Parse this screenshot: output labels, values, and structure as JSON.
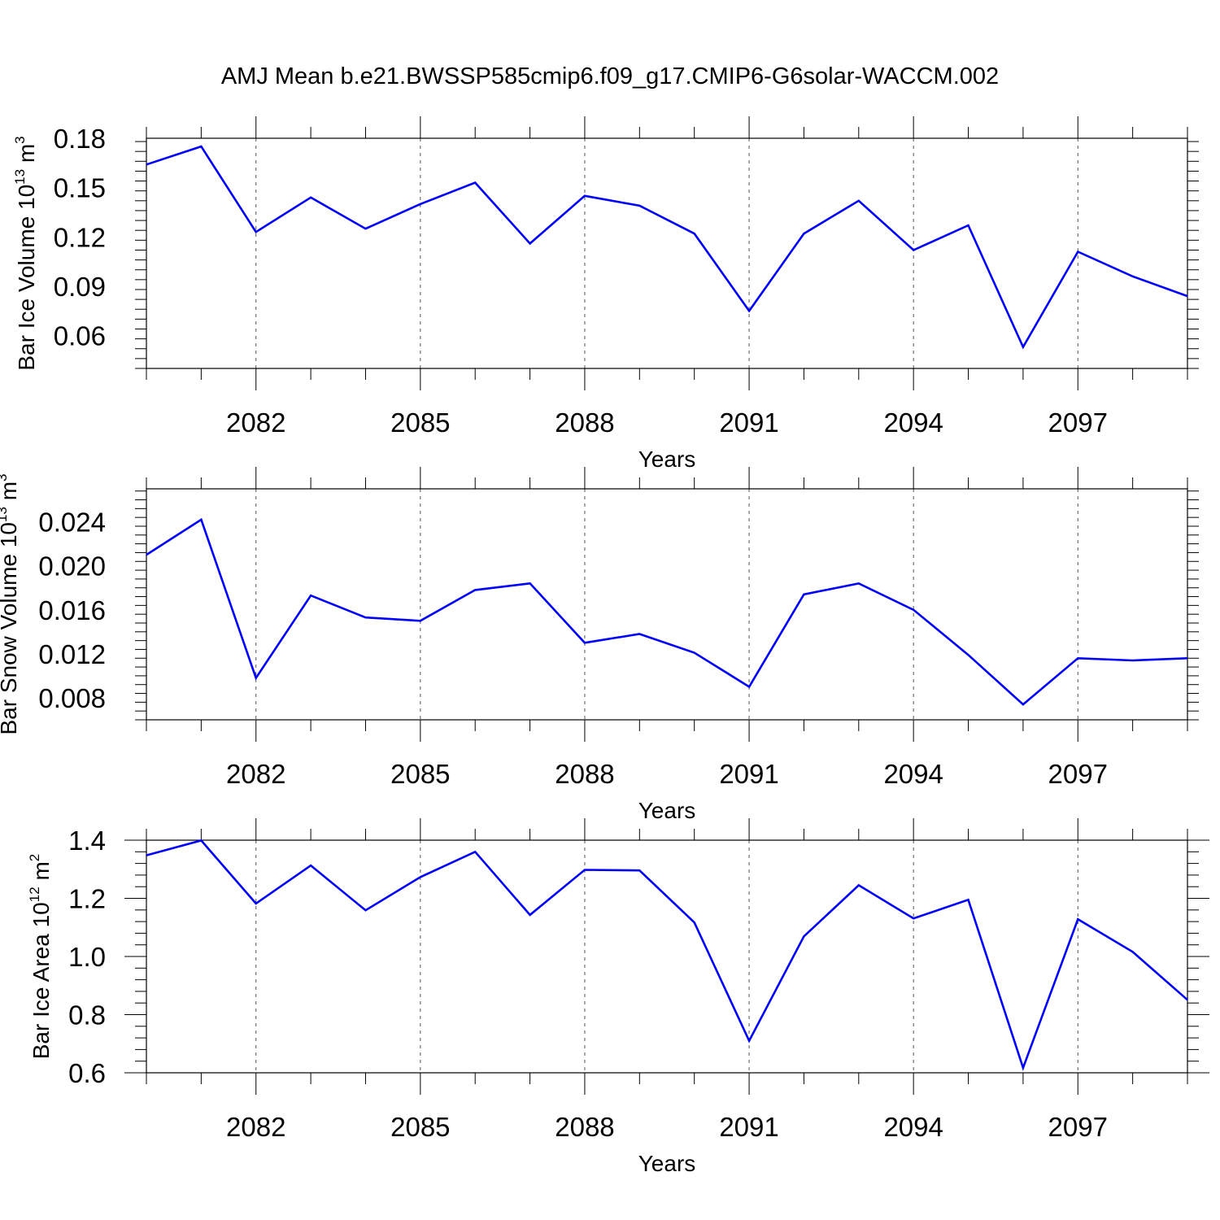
{
  "title": "AMJ Mean b.e21.BWSSP585cmip6.f09_g17.CMIP6-G6solar-WACCM.002",
  "line_color": "#0000ff",
  "chart_data": [
    {
      "type": "line",
      "name": "ice-volume",
      "ylabel_main": "Bar Ice Volume 10",
      "ylabel_exp": "13",
      "ylabel_unit": " m",
      "ylabel_unit_exp": "3",
      "xlabel": "Years",
      "xlim": [
        2080,
        2099
      ],
      "ylim": [
        0.04,
        0.18
      ],
      "x_ticks": [
        2082,
        2085,
        2088,
        2091,
        2094,
        2097
      ],
      "x_tick_labels": [
        "2082",
        "2085",
        "2088",
        "2091",
        "2094",
        "2097"
      ],
      "y_ticks": [
        0.06,
        0.09,
        0.12,
        0.15,
        0.18
      ],
      "y_tick_labels": [
        "0.06",
        "0.09",
        "0.12",
        "0.15",
        "0.18"
      ],
      "x": [
        2080,
        2081,
        2082,
        2083,
        2084,
        2085,
        2086,
        2087,
        2088,
        2089,
        2090,
        2091,
        2092,
        2093,
        2094,
        2095,
        2096,
        2097,
        2098,
        2099
      ],
      "values": [
        0.164,
        0.175,
        0.123,
        0.144,
        0.125,
        0.14,
        0.153,
        0.116,
        0.145,
        0.139,
        0.122,
        0.075,
        0.122,
        0.142,
        0.112,
        0.127,
        0.053,
        0.111,
        0.096,
        0.084
      ]
    },
    {
      "type": "line",
      "name": "snow-volume",
      "ylabel_main": "Bar Snow Volume 10",
      "ylabel_exp": "13",
      "ylabel_unit": " m",
      "ylabel_unit_exp": "3",
      "xlabel": "Years",
      "xlim": [
        2080,
        2099
      ],
      "ylim": [
        0.006,
        0.027
      ],
      "x_ticks": [
        2082,
        2085,
        2088,
        2091,
        2094,
        2097
      ],
      "x_tick_labels": [
        "2082",
        "2085",
        "2088",
        "2091",
        "2094",
        "2097"
      ],
      "y_ticks": [
        0.008,
        0.012,
        0.016,
        0.02,
        0.024
      ],
      "y_tick_labels": [
        "0.008",
        "0.012",
        "0.016",
        "0.020",
        "0.024"
      ],
      "x": [
        2080,
        2081,
        2082,
        2083,
        2084,
        2085,
        2086,
        2087,
        2088,
        2089,
        2090,
        2091,
        2092,
        2093,
        2094,
        2095,
        2096,
        2097,
        2098,
        2099
      ],
      "values": [
        0.021,
        0.0242,
        0.0098,
        0.0173,
        0.0153,
        0.015,
        0.0178,
        0.0184,
        0.013,
        0.0138,
        0.0121,
        0.009,
        0.0174,
        0.0184,
        0.016,
        0.0119,
        0.0074,
        0.0116,
        0.0114,
        0.0116
      ]
    },
    {
      "type": "line",
      "name": "ice-area",
      "ylabel_main": "Bar Ice Area 10",
      "ylabel_exp": "12",
      "ylabel_unit": " m",
      "ylabel_unit_exp": "2",
      "xlabel": "Years",
      "xlim": [
        2080,
        2099
      ],
      "ylim": [
        0.6,
        1.4
      ],
      "x_ticks": [
        2082,
        2085,
        2088,
        2091,
        2094,
        2097
      ],
      "x_tick_labels": [
        "2082",
        "2085",
        "2088",
        "2091",
        "2094",
        "2097"
      ],
      "y_ticks": [
        0.6,
        0.8,
        1.0,
        1.2,
        1.4
      ],
      "y_tick_labels": [
        "0.6",
        "0.8",
        "1.0",
        "1.2",
        "1.4"
      ],
      "x": [
        2080,
        2081,
        2082,
        2083,
        2084,
        2085,
        2086,
        2087,
        2088,
        2089,
        2090,
        2091,
        2092,
        2093,
        2094,
        2095,
        2096,
        2097,
        2098,
        2099
      ],
      "values": [
        1.348,
        1.399,
        1.182,
        1.313,
        1.159,
        1.273,
        1.36,
        1.143,
        1.298,
        1.296,
        1.117,
        0.71,
        1.069,
        1.245,
        1.131,
        1.195,
        0.617,
        1.128,
        1.016,
        0.851
      ]
    }
  ]
}
